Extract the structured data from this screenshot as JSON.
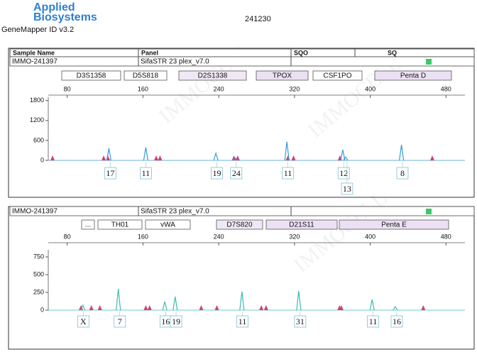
{
  "header": {
    "brand_top": "Applied",
    "brand_bottom": "Biosystems",
    "software": "GeneMapper ID v3.2",
    "run": "241230",
    "watermark": "IMMOCELL"
  },
  "table_header": [
    "Sample Name",
    "Panel",
    "SQO",
    "SQ"
  ],
  "panels": [
    {
      "sample": "IMMO-241397",
      "panel": "SifaSTR 23 plex_v7.0",
      "markers": [
        "D3S1358",
        "D5S818",
        "D2S1338",
        "TPOX",
        "CSF1PO",
        "Penta D"
      ],
      "chart_data": {
        "type": "electropherogram",
        "xlim": [
          60,
          500
        ],
        "xticks": [
          80,
          160,
          240,
          320,
          400,
          480
        ],
        "ylim": [
          0,
          1900
        ],
        "yticks": [
          0,
          600,
          1200,
          1800
        ],
        "color": "#3a9ad6",
        "artifact_color": "#d83c6e",
        "peaks": {
          "x": [
            124,
            163,
            237,
            257,
            312,
            371,
            374,
            433
          ],
          "values": [
            365,
            390,
            215,
            85,
            560,
            320,
            100,
            470
          ]
        },
        "artifacts": [
          64.5,
          118.5,
          123,
          174,
          178,
          256,
          260,
          313,
          319,
          368,
          465.5
        ],
        "alleles": {
          "labels": [
            "17",
            "11",
            "19",
            "24",
            "11",
            "12",
            "13",
            "8"
          ],
          "x": [
            125.5,
            163,
            238,
            258.5,
            313,
            372,
            375.5,
            434
          ]
        }
      }
    },
    {
      "sample": "IMMO-241397",
      "panel": "SifaSTR 23 plex_v7.0",
      "markers": [
        "...",
        "TH01",
        "vWA",
        "D7S820",
        "D21S11",
        "Penta E"
      ],
      "chart_data": {
        "type": "electropherogram",
        "xlim": [
          60,
          500
        ],
        "xticks": [
          80,
          160,
          240,
          320,
          400,
          480
        ],
        "ylim": [
          0,
          850
        ],
        "yticks": [
          0,
          250,
          500,
          750
        ],
        "color": "#3bbcb2",
        "artifact_color": "#d83c6e",
        "peaks": {
          "x": [
            96.5,
            134,
            183,
            194,
            264.5,
            324.5,
            402,
            426.5
          ],
          "values": [
            70,
            300,
            120,
            190,
            260,
            270,
            150,
            50
          ]
        },
        "artifacts": [
          94.5,
          105.5,
          114.5,
          163,
          167,
          221.5,
          238,
          285,
          290,
          367.5,
          369.5,
          456
        ],
        "alleles": {
          "labels": [
            "X",
            "7",
            "16",
            "19",
            "11",
            "31",
            "11",
            "16"
          ],
          "x": [
            97,
            135.5,
            184,
            195,
            265,
            326,
            403,
            428
          ]
        }
      }
    }
  ]
}
